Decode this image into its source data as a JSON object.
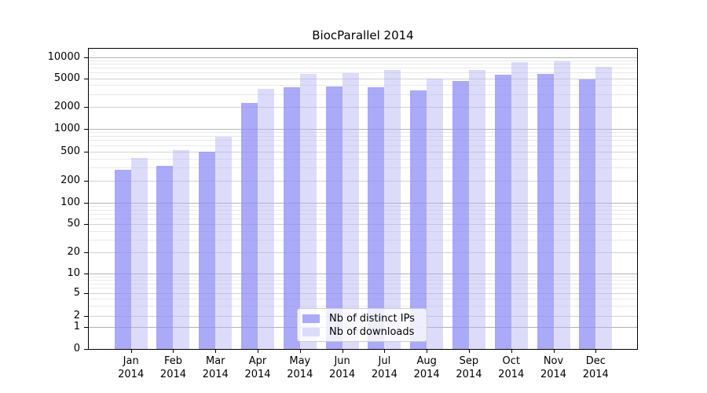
{
  "chart_data": {
    "type": "bar",
    "title": "BiocParallel 2014",
    "scale": "symlog",
    "grid": true,
    "legend_position": "lower center",
    "year": "2014",
    "months": [
      "Jan",
      "Feb",
      "Mar",
      "Apr",
      "May",
      "Jun",
      "Jul",
      "Aug",
      "Sep",
      "Oct",
      "Nov",
      "Dec"
    ],
    "series": [
      {
        "name": "Nb of distinct IPs",
        "legend_color": "#aaaaf7",
        "fill": "rgba(142,142,245,0.75)",
        "values": [
          280,
          320,
          490,
          2250,
          3700,
          3850,
          3750,
          3400,
          4550,
          5600,
          5700,
          4850
        ]
      },
      {
        "name": "Nb of downloads",
        "legend_color": "#dcdcfa",
        "fill": "rgba(177,177,244,0.45)",
        "values": [
          410,
          520,
          780,
          3600,
          5700,
          5900,
          6500,
          5000,
          6500,
          8400,
          8700,
          7300
        ]
      }
    ],
    "y_ticks": [
      [
        0,
        "0"
      ],
      [
        1,
        "1"
      ],
      [
        2,
        "2"
      ],
      [
        5,
        "5"
      ],
      [
        10,
        "10"
      ],
      [
        20,
        "20"
      ],
      [
        50,
        "50"
      ],
      [
        100,
        "100"
      ],
      [
        200,
        "200"
      ],
      [
        500,
        "500"
      ],
      [
        1000,
        "1000"
      ],
      [
        2000,
        "2000"
      ],
      [
        5000,
        "5000"
      ],
      [
        10000,
        "10000"
      ]
    ],
    "y_minor_ticks": [
      3,
      4,
      6,
      7,
      8,
      9,
      30,
      40,
      60,
      70,
      80,
      90,
      300,
      400,
      600,
      700,
      800,
      900,
      3000,
      4000,
      6000,
      7000,
      8000,
      9000
    ],
    "ylim": [
      0,
      13000
    ],
    "colors": {
      "grid_decade": "#b3b3b3",
      "grid_major": "#d2d2d2",
      "grid_minor": "#e9e9e9",
      "axis": "#000000"
    }
  }
}
